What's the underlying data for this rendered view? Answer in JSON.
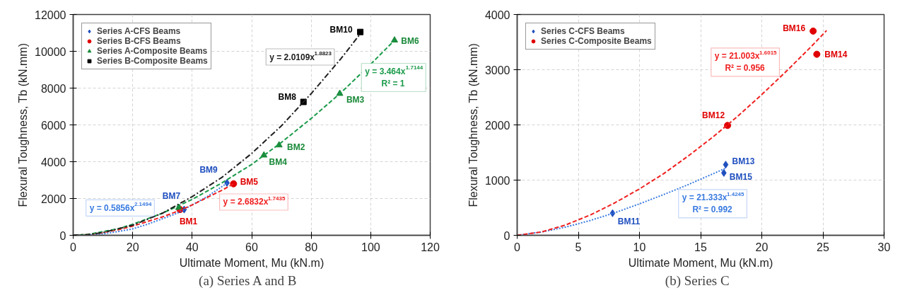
{
  "chart_data": [
    {
      "type": "scatter",
      "title": "(a)   Series A and B",
      "xlabel": "Ultimate Moment, Mu (kN.m)",
      "ylabel": "Flexural Toughness, Tb (kN.mm)",
      "xlim": [
        0,
        120
      ],
      "xticks": [
        0,
        20,
        40,
        60,
        80,
        100,
        120
      ],
      "ylim": [
        0,
        12000
      ],
      "yticks": [
        0,
        2000,
        4000,
        6000,
        8000,
        10000,
        12000
      ],
      "grid": true,
      "legend": "top left",
      "series": [
        {
          "name": "Series A-CFS Beams",
          "color": "#1f4fbf",
          "marker": "diamond",
          "x": [
            37.3,
            51.7
          ],
          "values": [
            1400,
            2850
          ],
          "value_labels": [
            "BM7",
            "BM9"
          ]
        },
        {
          "name": "Series B-CFS Beams",
          "color": "#e00000",
          "marker": "circle",
          "x": [
            35.9,
            53.9
          ],
          "values": [
            1400,
            2800
          ],
          "value_labels": [
            "BM1",
            "BM5"
          ]
        },
        {
          "name": "Series A-Composite Beams",
          "color": "#1a8a3a",
          "marker": "triangle",
          "x": [
            35.5,
            64.1,
            69.2,
            89.6,
            108.0
          ],
          "values": [
            1500,
            4350,
            4900,
            7700,
            10600
          ],
          "value_labels": [
            null,
            "BM4",
            "BM2",
            "BM3",
            "BM6"
          ]
        },
        {
          "name": "Series B-Composite Beams",
          "color": "#000000",
          "marker": "square",
          "x": [
            77.4,
            96.5
          ],
          "values": [
            7250,
            11050
          ],
          "value_labels": [
            "BM8",
            "BM10"
          ]
        },
        {
          "type": "line",
          "name": "y = 0.5856x$^{2.1494}$",
          "color": "#3a7be0",
          "line_style": "dotted",
          "marker": "none",
          "x": [
            0,
            5,
            10,
            15,
            20,
            25,
            30,
            35,
            40,
            45,
            50,
            52
          ],
          "values": [
            0,
            20,
            80,
            200,
            350,
            600,
            900,
            1200,
            1650,
            2100,
            2650,
            2850
          ]
        },
        {
          "type": "line",
          "name": "y = 2.6832x$^{1.7435}$",
          "color": "#f02020",
          "line_style": "dashed",
          "marker": "none",
          "x": [
            0,
            5,
            10,
            15,
            20,
            25,
            30,
            35,
            40,
            45,
            50,
            54
          ],
          "values": [
            0,
            40,
            150,
            300,
            500,
            750,
            1000,
            1300,
            1650,
            2050,
            2450,
            2800
          ]
        },
        {
          "type": "line",
          "name": "y = 3.464x$^{1.7144}$\nR² = 1",
          "color": "#1a9a4a",
          "line_style": "dashed",
          "marker": "none",
          "x": [
            0,
            5,
            10,
            15,
            20,
            30,
            40,
            50,
            60,
            70,
            80,
            90,
            100,
            108
          ],
          "values": [
            0,
            50,
            200,
            350,
            600,
            1200,
            1950,
            2850,
            3850,
            5050,
            6350,
            7750,
            9300,
            10600
          ]
        },
        {
          "type": "line",
          "name": "y = 2.0109x$^{1.8823}$",
          "color": "#202020",
          "line_style": "dashdot",
          "marker": "none",
          "x": [
            0,
            5,
            10,
            15,
            20,
            30,
            40,
            50,
            60,
            70,
            80,
            90,
            96.5
          ],
          "values": [
            0,
            40,
            150,
            350,
            550,
            1200,
            2100,
            3150,
            4450,
            5950,
            7700,
            9600,
            10950
          ]
        }
      ]
    },
    {
      "type": "scatter",
      "title": "(b)   Series C",
      "xlabel": "Ultimate Moment, Mu (kN.m)",
      "ylabel": "Flexural Toughness, Tb (kN.mm)",
      "xlim": [
        0,
        30
      ],
      "xticks": [
        0,
        5,
        10,
        15,
        20,
        25,
        30
      ],
      "ylim": [
        0,
        4000
      ],
      "yticks": [
        0,
        1000,
        2000,
        3000,
        4000
      ],
      "grid": true,
      "legend": "top left",
      "series": [
        {
          "name": "Series C-CFS Beams",
          "color": "#1f4fbf",
          "marker": "diamond",
          "x": [
            7.8,
            16.9,
            17.05
          ],
          "values": [
            400,
            1130,
            1280
          ],
          "value_labels": [
            "BM11",
            "BM15",
            "BM13"
          ]
        },
        {
          "name": "Series C-Composite Beams",
          "color": "#e00000",
          "marker": "circle",
          "x": [
            17.2,
            24.2,
            24.5
          ],
          "values": [
            1990,
            3700,
            3280
          ],
          "value_labels": [
            "BM12",
            "BM16",
            "BM14"
          ]
        },
        {
          "type": "line",
          "name": "y = 21.333x$^{1.4245}$\nR² = 0.992",
          "color": "#3a7be0",
          "line_style": "dotted",
          "marker": "none",
          "x": [
            0,
            2,
            4,
            6,
            8,
            10,
            12,
            14,
            17
          ],
          "values": [
            0,
            60,
            150,
            270,
            410,
            570,
            740,
            920,
            1210
          ]
        },
        {
          "type": "line",
          "name": "y = 21.003x$^{1.6015}$\nR² = 0.956",
          "color": "#f02020",
          "line_style": "dashed",
          "marker": "none",
          "x": [
            0,
            2,
            4,
            6,
            8,
            10,
            12,
            14,
            16,
            18,
            20,
            22,
            24,
            25.3
          ],
          "values": [
            0,
            60,
            190,
            370,
            590,
            840,
            1120,
            1440,
            1780,
            2150,
            2550,
            2970,
            3410,
            3710
          ]
        }
      ]
    }
  ]
}
